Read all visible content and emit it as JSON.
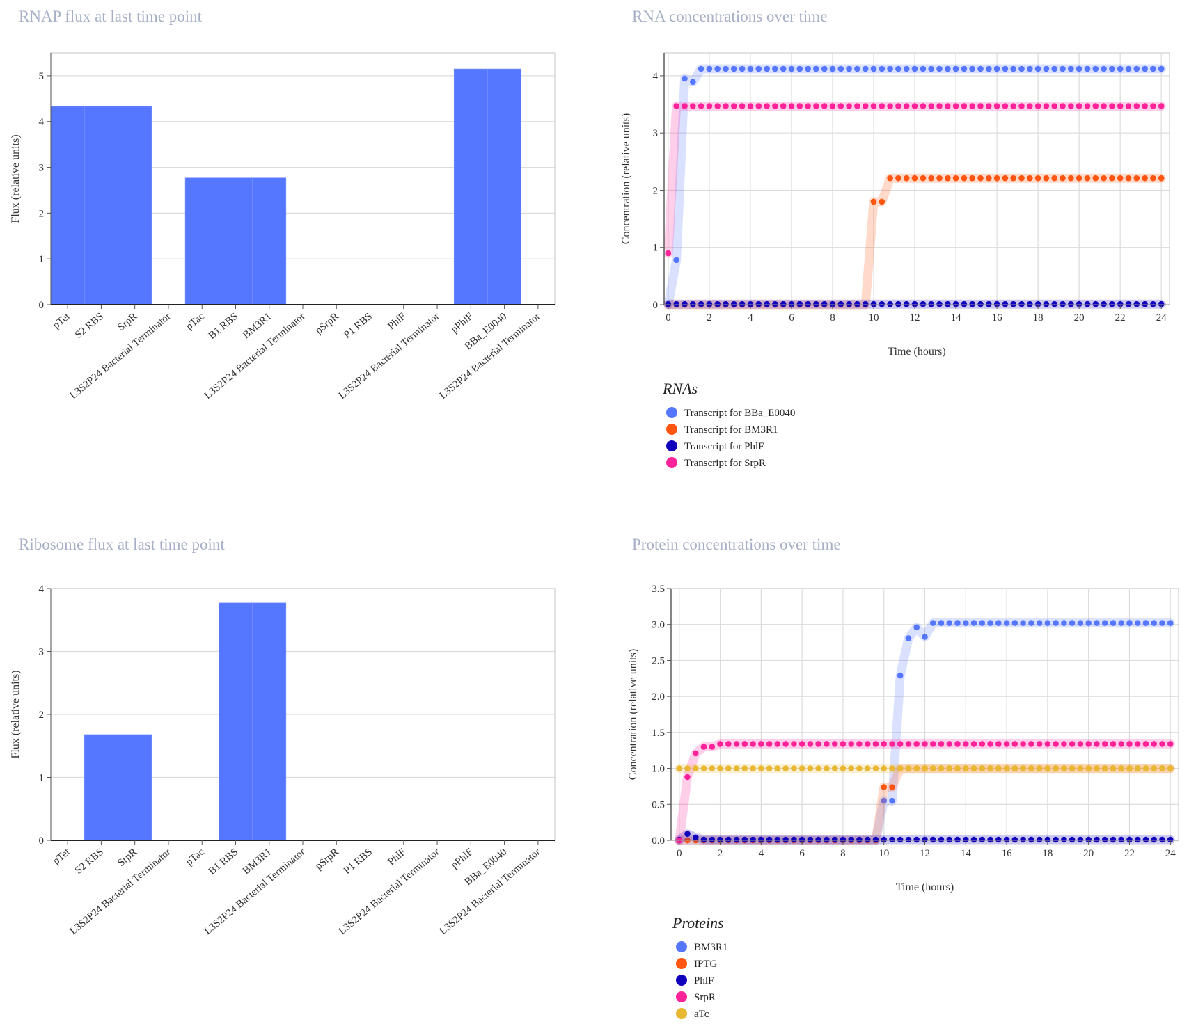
{
  "chart_data": [
    {
      "id": "rnap",
      "type": "bar",
      "title": "RNAP flux at last time point",
      "ylabel": "Flux (relative units)",
      "xlabel": "",
      "ylim": [
        0,
        5.5
      ],
      "yticks": [
        0,
        1,
        2,
        3,
        4,
        5
      ],
      "color": "#5577ff",
      "categories": [
        "pTet",
        "S2 RBS",
        "SrpR",
        "L3S2P24 Bacterial Terminator",
        "pTac",
        "B1 RBS",
        "BM3R1",
        "L3S2P24 Bacterial Terminator",
        "pSrpR",
        "P1 RBS",
        "PhlF",
        "L3S2P24 Bacterial Terminator",
        "pPhlF",
        "BBa_E0040",
        "L3S2P24 Bacterial Terminator"
      ],
      "values": [
        4.33,
        4.33,
        4.33,
        0,
        2.77,
        2.77,
        2.77,
        0,
        0,
        0,
        0,
        0,
        5.15,
        5.15,
        0
      ]
    },
    {
      "id": "rna",
      "type": "line",
      "title": "RNA concentrations over time",
      "ylabel": "Concentration (relative units)",
      "xlabel": "Time (hours)",
      "xlim": [
        -0.2,
        24.4
      ],
      "ylim": [
        0,
        4.4
      ],
      "xticks": [
        0,
        2,
        4,
        6,
        8,
        10,
        12,
        14,
        16,
        18,
        20,
        22,
        24
      ],
      "yticks": [
        0,
        1,
        2,
        3,
        4
      ],
      "legend_title": "RNAs",
      "legend_position": "bottom-left",
      "series": [
        {
          "name": "Transcript for BBa_E0040",
          "color": "#5577ff",
          "start": 0,
          "rise_start": 0,
          "rise_end": 1.4,
          "final": 4.12,
          "fixed": [
            [
              0.4,
              0.78
            ],
            [
              0.8,
              3.95
            ]
          ]
        },
        {
          "name": "Transcript for BM3R1",
          "color": "#ff5511",
          "start": 0,
          "rise_start": 9.6,
          "rise_end": 10.6,
          "final": 2.21,
          "fixed": [
            [
              10.2,
              1.8
            ]
          ]
        },
        {
          "name": "Transcript for PhlF",
          "color": "#1100bb",
          "start": 0,
          "rise_start": 0,
          "rise_end": 0,
          "final": 0.01,
          "fixed": []
        },
        {
          "name": "Transcript for SrpR",
          "color": "#ff2299",
          "start": 0,
          "rise_start": -0.2,
          "rise_end": 0.4,
          "final": 3.47,
          "fixed": []
        }
      ]
    },
    {
      "id": "ribosome",
      "type": "bar",
      "title": "Ribosome flux at last time point",
      "ylabel": "Flux (relative units)",
      "xlabel": "",
      "ylim": [
        0,
        4.0
      ],
      "yticks": [
        0,
        1,
        2,
        3,
        4
      ],
      "color": "#5577ff",
      "categories": [
        "pTet",
        "S2 RBS",
        "SrpR",
        "L3S2P24 Bacterial Terminator",
        "pTac",
        "B1 RBS",
        "BM3R1",
        "L3S2P24 Bacterial Terminator",
        "pSrpR",
        "P1 RBS",
        "PhlF",
        "L3S2P24 Bacterial Terminator",
        "pPhlF",
        "BBa_E0040",
        "L3S2P24 Bacterial Terminator"
      ],
      "values": [
        0,
        1.68,
        1.68,
        0,
        0,
        3.77,
        3.77,
        0,
        0,
        0,
        0,
        0,
        0,
        0,
        0
      ]
    },
    {
      "id": "protein",
      "type": "line",
      "title": "Protein concentrations over time",
      "ylabel": "Concentration (relative units)",
      "xlabel": "Time (hours)",
      "xlim": [
        -0.4,
        24.4
      ],
      "ylim": [
        0,
        3.5
      ],
      "xticks": [
        0,
        2,
        4,
        6,
        8,
        10,
        12,
        14,
        16,
        18,
        20,
        22,
        24
      ],
      "yticks": [
        0,
        0.5,
        1.0,
        1.5,
        2.0,
        2.5,
        3.0,
        3.5
      ],
      "ytick_labels": [
        "0.0",
        "0.5",
        "1.0",
        "1.5",
        "2.0",
        "2.5",
        "3.0",
        "3.5"
      ],
      "legend_title": "Proteins",
      "legend_position": "bottom-left",
      "series": [
        {
          "name": "BM3R1",
          "color": "#5577ff",
          "start": 0,
          "rise_start": 9.8,
          "rise_end": 12.4,
          "final": 3.02,
          "fixed": [
            [
              10.2,
              0.55
            ],
            [
              10.7,
              2.29
            ],
            [
              11.2,
              2.81
            ],
            [
              11.7,
              2.96
            ]
          ]
        },
        {
          "name": "IPTG",
          "color": "#ff5511",
          "start": 0,
          "rise_start": 9.7,
          "rise_end": 10.8,
          "final": 1.0,
          "fixed": [
            [
              10.2,
              0.74
            ]
          ]
        },
        {
          "name": "PhlF",
          "color": "#1100bb",
          "start": 0,
          "rise_start": 0,
          "rise_end": 0,
          "final": 0.01,
          "fixed": [
            [
              0.4,
              0.09
            ],
            [
              0.9,
              0.04
            ]
          ]
        },
        {
          "name": "SrpR",
          "color": "#ff2299",
          "start": 0,
          "rise_start": 0,
          "rise_end": 2.0,
          "final": 1.34,
          "fixed": [
            [
              0.4,
              0.88
            ],
            [
              0.9,
              1.21
            ],
            [
              1.4,
              1.3
            ]
          ]
        },
        {
          "name": "aTc",
          "color": "#e8b833",
          "start": 1.0,
          "rise_start": 0,
          "rise_end": 0,
          "final": 1.0,
          "fixed": []
        }
      ]
    }
  ]
}
